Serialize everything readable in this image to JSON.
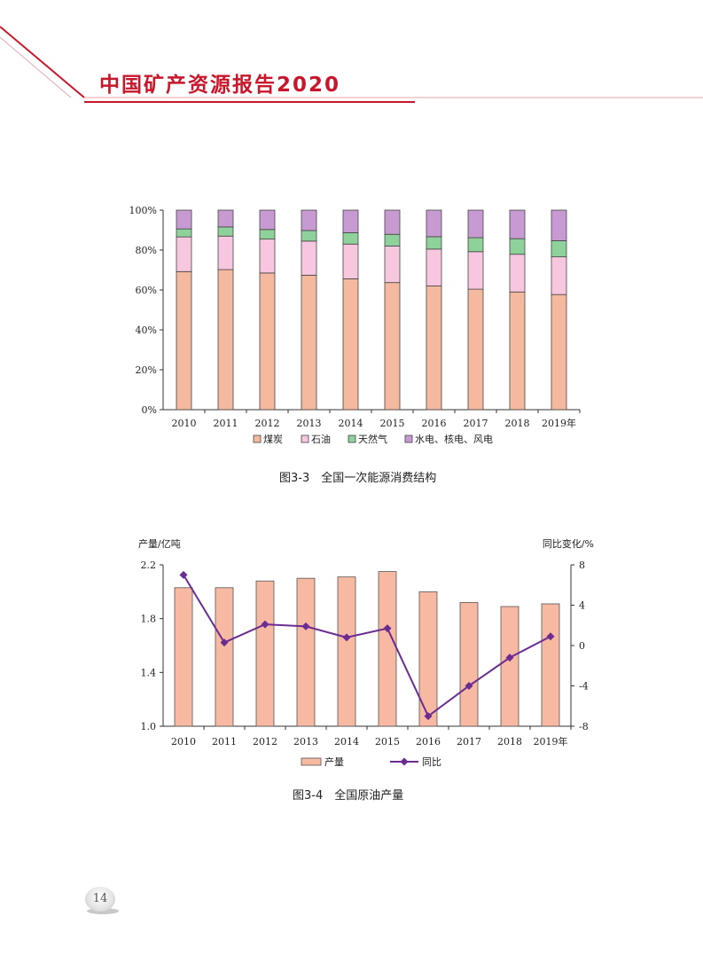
{
  "header": {
    "title": "中国矿产资源报告2020"
  },
  "page_number": "14",
  "colors": {
    "brand": "#c8162a",
    "coal": "#f5b9a0",
    "oil": "#f7c6df",
    "gas": "#8fd19a",
    "hydro": "#c79bd2",
    "bar": "#f7b9a2",
    "line": "#6a2c91"
  },
  "chart_data": [
    {
      "type": "bar",
      "stacked": true,
      "categories": [
        "2010",
        "2011",
        "2012",
        "2013",
        "2014",
        "2015",
        "2016",
        "2017",
        "2018",
        "2019年"
      ],
      "series": [
        {
          "name": "煤炭",
          "values": [
            69.2,
            70.2,
            68.5,
            67.4,
            65.6,
            63.7,
            62.0,
            60.4,
            59.0,
            57.7
          ]
        },
        {
          "name": "石油",
          "values": [
            17.4,
            16.8,
            17.0,
            17.1,
            17.4,
            18.3,
            18.5,
            18.8,
            18.9,
            18.9
          ]
        },
        {
          "name": "天然气",
          "values": [
            4.0,
            4.6,
            4.8,
            5.3,
            5.7,
            5.9,
            6.2,
            7.0,
            7.8,
            8.1
          ]
        },
        {
          "name": "水电、核电、风电",
          "values": [
            9.4,
            8.4,
            9.7,
            10.2,
            11.3,
            12.1,
            13.3,
            13.8,
            14.3,
            15.3
          ]
        }
      ],
      "yticks": [
        "0%",
        "20%",
        "40%",
        "60%",
        "80%",
        "100%"
      ],
      "ylim": [
        0,
        100
      ],
      "legend": "bottom",
      "caption": "图3-3　全国一次能源消费结构"
    },
    {
      "type": "bar+line",
      "categories": [
        "2010",
        "2011",
        "2012",
        "2013",
        "2014",
        "2015",
        "2016",
        "2017",
        "2018",
        "2019年"
      ],
      "bar_series": {
        "name": "产量",
        "values": [
          2.03,
          2.03,
          2.08,
          2.1,
          2.11,
          2.15,
          2.0,
          1.92,
          1.89,
          1.91
        ]
      },
      "line_series": {
        "name": "同比",
        "values": [
          7.0,
          0.3,
          2.1,
          1.9,
          0.8,
          1.7,
          -7.0,
          -4.0,
          -1.2,
          0.9
        ]
      },
      "ylabel_left": "产量/亿吨",
      "ylabel_right": "同比变化/%",
      "yticks_left": [
        "1.0",
        "1.4",
        "1.8",
        "2.2"
      ],
      "yticks_right": [
        "-8",
        "-4",
        "0",
        "4",
        "8"
      ],
      "ylim_left": [
        1.0,
        2.2
      ],
      "ylim_right": [
        -8,
        8
      ],
      "legend": "bottom",
      "caption": "图3-4　全国原油产量"
    }
  ]
}
